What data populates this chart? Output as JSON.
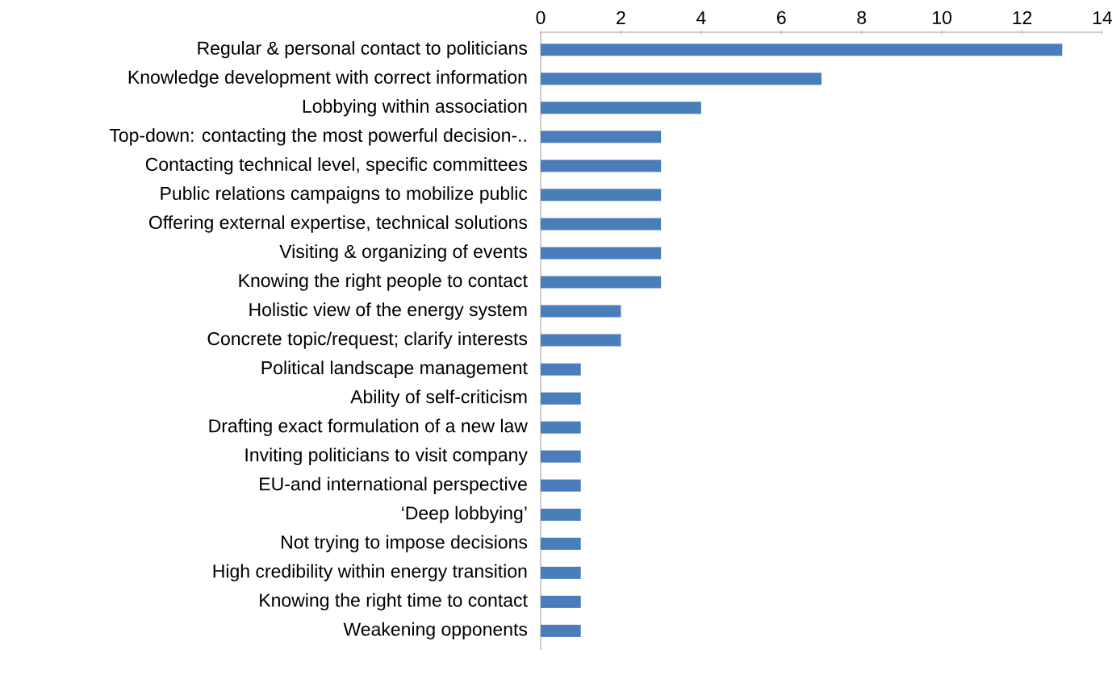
{
  "chart_data": {
    "type": "bar",
    "orientation": "horizontal",
    "color": "#4a7ebb",
    "xlim": [
      0,
      14
    ],
    "xticks": [
      0,
      2,
      4,
      6,
      8,
      10,
      12,
      14
    ],
    "categories": [
      "Regular & personal contact to politicians",
      "Knowledge development with correct information",
      "Lobbying within association",
      "Top-down: contacting the most powerful decision-..",
      "Contacting technical level, specific committees",
      "Public relations campaigns to mobilize public",
      "Offering external expertise, technical solutions",
      "Visiting & organizing of events",
      "Knowing the right people to contact",
      "Holistic view of the energy system",
      "Concrete topic/request; clarify interests",
      "Political landscape management",
      "Ability of self-criticism",
      "Drafting exact formulation of a new law",
      "Inviting politicians to visit company",
      "EU-and international perspective",
      "‘Deep lobbying’",
      "Not trying to impose decisions",
      "High credibility within energy transition",
      "Knowing the right time to contact",
      "Weakening opponents"
    ],
    "values": [
      13,
      7,
      4,
      3,
      3,
      3,
      3,
      3,
      3,
      2,
      2,
      1,
      1,
      1,
      1,
      1,
      1,
      1,
      1,
      1,
      1
    ]
  }
}
